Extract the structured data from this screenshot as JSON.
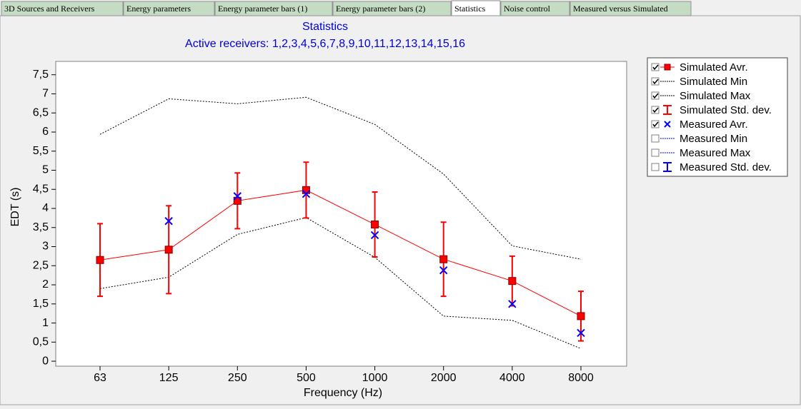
{
  "tabs": [
    {
      "label": "3D Sources and Receivers",
      "active": false
    },
    {
      "label": "Energy parameters",
      "active": false
    },
    {
      "label": "Energy parameter bars (1)",
      "active": false
    },
    {
      "label": "Energy parameter bars (2)",
      "active": false
    },
    {
      "label": "Statistics",
      "active": true
    },
    {
      "label": "Noise control",
      "active": false
    },
    {
      "label": "Measured versus Simulated",
      "active": false
    }
  ],
  "chart_data": {
    "type": "line",
    "title": "Statistics",
    "subtitle": "Active receivers: 1,2,3,4,5,6,7,8,9,10,11,12,13,14,15,16",
    "x_label": "Frequency (Hz)",
    "y_label": "EDT (s)",
    "categories": [
      "63",
      "125",
      "250",
      "500",
      "1000",
      "2000",
      "4000",
      "8000"
    ],
    "ylim": [
      -0.13,
      7.85
    ],
    "yticks": [
      0,
      {
        "value": 0.5,
        "label": "0,5"
      },
      1,
      {
        "value": 1.5,
        "label": "1,5"
      },
      2,
      {
        "value": 2.5,
        "label": "2,5"
      },
      3,
      {
        "value": 3.5,
        "label": "3,5"
      },
      4,
      {
        "value": 4.5,
        "label": "4,5"
      },
      5,
      {
        "value": 5.5,
        "label": "5,5"
      },
      6,
      {
        "value": 6.5,
        "label": "6,5"
      },
      7,
      {
        "value": 7.5,
        "label": "7,5"
      }
    ],
    "legend": "outside-right",
    "series": [
      {
        "name": "Simulated Avr.",
        "color": "#ff0000",
        "style": "line-square",
        "checked": true,
        "values": [
          2.65,
          2.92,
          4.2,
          4.48,
          3.58,
          2.67,
          2.1,
          1.18
        ]
      },
      {
        "name": "Simulated Min",
        "color": "#000000",
        "style": "dotted",
        "checked": true,
        "values": [
          1.9,
          2.2,
          3.32,
          3.76,
          2.72,
          1.18,
          1.07,
          0.33
        ]
      },
      {
        "name": "Simulated Max",
        "color": "#000000",
        "style": "dotted",
        "checked": true,
        "values": [
          5.94,
          6.87,
          6.74,
          6.91,
          6.2,
          4.9,
          3.02,
          2.67
        ]
      },
      {
        "name": "Simulated Std. dev.",
        "color": "#ff0000",
        "style": "errorbar",
        "checked": true,
        "of": 0,
        "values": [
          0.95,
          1.15,
          0.73,
          0.73,
          0.85,
          0.97,
          0.65,
          0.65
        ]
      },
      {
        "name": "Measured Avr.",
        "color": "#0000ff",
        "style": "x",
        "checked": true,
        "values": [
          null,
          3.67,
          4.32,
          4.38,
          3.3,
          2.38,
          1.5,
          0.74
        ]
      },
      {
        "name": "Measured Min",
        "color": "#0000ff",
        "style": "dotted",
        "checked": false,
        "values": [
          null,
          null,
          null,
          null,
          null,
          null,
          null,
          null
        ]
      },
      {
        "name": "Measured Max",
        "color": "#0000ff",
        "style": "dotted",
        "checked": false,
        "values": [
          null,
          null,
          null,
          null,
          null,
          null,
          null,
          null
        ]
      },
      {
        "name": "Measured Std. dev.",
        "color": "#0000ff",
        "style": "errorbar",
        "checked": false,
        "of": 4,
        "values": [
          null,
          null,
          null,
          null,
          null,
          null,
          null,
          null
        ]
      }
    ]
  }
}
